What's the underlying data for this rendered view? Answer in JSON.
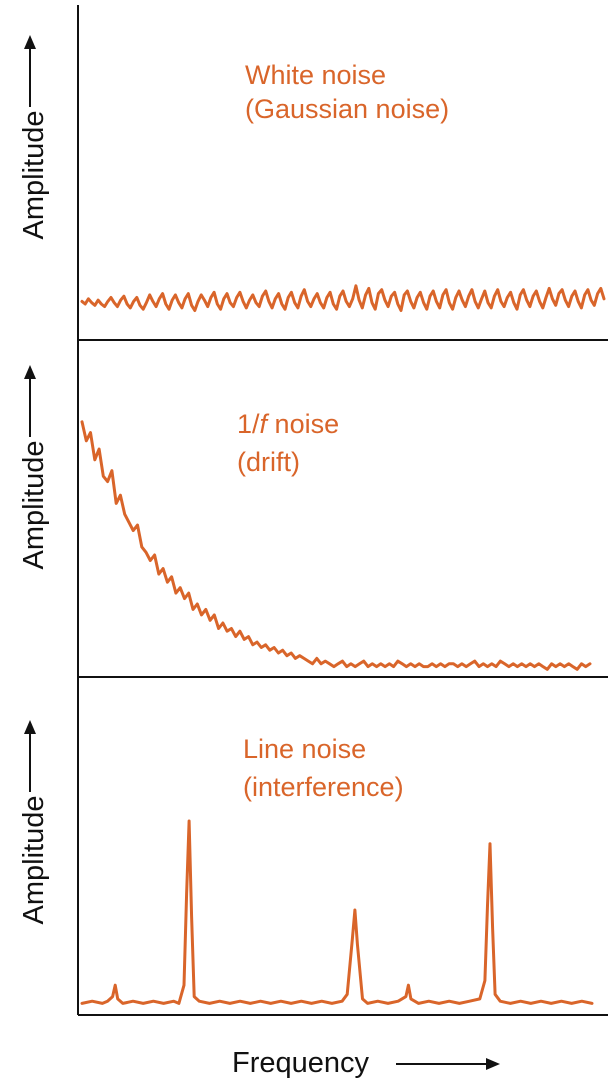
{
  "colors": {
    "trace": "#d9652a",
    "text": "#d9652a",
    "axis": "#111111"
  },
  "x_axis_label": "Frequency",
  "chart_data": [
    {
      "type": "line",
      "title_lines": [
        "White noise",
        "(Gaussian noise)"
      ],
      "ylabel": "Amplitude",
      "xlabel": "",
      "ylim": [
        0,
        1
      ],
      "xlim": [
        0,
        1
      ],
      "grid": false,
      "y": [
        0.22,
        0.2,
        0.24,
        0.21,
        0.19,
        0.23,
        0.2,
        0.18,
        0.22,
        0.25,
        0.21,
        0.18,
        0.23,
        0.26,
        0.2,
        0.17,
        0.22,
        0.25,
        0.19,
        0.16,
        0.21,
        0.27,
        0.22,
        0.18,
        0.24,
        0.28,
        0.2,
        0.16,
        0.23,
        0.27,
        0.21,
        0.17,
        0.24,
        0.28,
        0.19,
        0.15,
        0.22,
        0.27,
        0.23,
        0.18,
        0.25,
        0.29,
        0.2,
        0.16,
        0.24,
        0.28,
        0.21,
        0.18,
        0.25,
        0.29,
        0.22,
        0.17,
        0.23,
        0.27,
        0.21,
        0.18,
        0.26,
        0.3,
        0.22,
        0.17,
        0.24,
        0.28,
        0.2,
        0.16,
        0.25,
        0.29,
        0.21,
        0.17,
        0.26,
        0.31,
        0.22,
        0.18,
        0.24,
        0.28,
        0.21,
        0.17,
        0.25,
        0.29,
        0.2,
        0.16,
        0.26,
        0.3,
        0.22,
        0.18,
        0.24,
        0.34,
        0.23,
        0.17,
        0.27,
        0.32,
        0.21,
        0.16,
        0.28,
        0.31,
        0.23,
        0.18,
        0.26,
        0.29,
        0.2,
        0.15,
        0.27,
        0.3,
        0.22,
        0.17,
        0.25,
        0.29,
        0.21,
        0.16,
        0.26,
        0.3,
        0.22,
        0.17,
        0.27,
        0.31,
        0.21,
        0.16,
        0.25,
        0.3,
        0.23,
        0.18,
        0.26,
        0.31,
        0.22,
        0.17,
        0.24,
        0.3,
        0.21,
        0.17,
        0.26,
        0.31,
        0.22,
        0.18,
        0.25,
        0.29,
        0.21,
        0.16,
        0.27,
        0.31,
        0.23,
        0.18,
        0.26,
        0.3,
        0.22,
        0.17,
        0.25,
        0.32,
        0.24,
        0.19,
        0.28,
        0.31,
        0.23,
        0.18,
        0.26,
        0.3,
        0.22,
        0.17,
        0.27,
        0.31,
        0.23,
        0.19,
        0.28,
        0.32,
        0.24
      ]
    },
    {
      "type": "line",
      "title_lines": [
        "1/f noise",
        "(drift)"
      ],
      "title_italic_token": "f",
      "ylabel": "Amplitude",
      "xlabel": "",
      "ylim": [
        0,
        1
      ],
      "xlim": [
        0,
        1
      ],
      "grid": false,
      "y": [
        0.92,
        0.85,
        0.88,
        0.78,
        0.82,
        0.72,
        0.7,
        0.74,
        0.62,
        0.65,
        0.58,
        0.55,
        0.52,
        0.54,
        0.46,
        0.44,
        0.41,
        0.43,
        0.36,
        0.38,
        0.33,
        0.35,
        0.29,
        0.31,
        0.27,
        0.29,
        0.23,
        0.25,
        0.21,
        0.23,
        0.19,
        0.21,
        0.16,
        0.18,
        0.15,
        0.16,
        0.13,
        0.15,
        0.12,
        0.13,
        0.1,
        0.11,
        0.09,
        0.1,
        0.08,
        0.09,
        0.07,
        0.08,
        0.06,
        0.07,
        0.05,
        0.06,
        0.05,
        0.04,
        0.03,
        0.05,
        0.03,
        0.04,
        0.03,
        0.02,
        0.03,
        0.04,
        0.02,
        0.03,
        0.02,
        0.03,
        0.04,
        0.02,
        0.03,
        0.02,
        0.03,
        0.02,
        0.03,
        0.02,
        0.04,
        0.03,
        0.02,
        0.03,
        0.02,
        0.03,
        0.02,
        0.02,
        0.03,
        0.02,
        0.03,
        0.02,
        0.03,
        0.03,
        0.02,
        0.03,
        0.02,
        0.03,
        0.04,
        0.02,
        0.03,
        0.02,
        0.03,
        0.02,
        0.04,
        0.03,
        0.02,
        0.03,
        0.02,
        0.03,
        0.02,
        0.03,
        0.02,
        0.03,
        0.02,
        0.01,
        0.03,
        0.02,
        0.03,
        0.02,
        0.03,
        0.02,
        0.01,
        0.03,
        0.02,
        0.03
      ]
    },
    {
      "type": "line",
      "title_lines": [
        "Line noise",
        "(interference)"
      ],
      "ylabel": "Amplitude",
      "xlabel": "",
      "ylim": [
        0,
        1
      ],
      "xlim": [
        0,
        1
      ],
      "grid": false,
      "x": [
        0.0,
        0.02,
        0.04,
        0.05,
        0.06,
        0.065,
        0.07,
        0.08,
        0.1,
        0.12,
        0.14,
        0.16,
        0.18,
        0.19,
        0.2,
        0.205,
        0.21,
        0.215,
        0.22,
        0.23,
        0.25,
        0.27,
        0.29,
        0.31,
        0.33,
        0.35,
        0.37,
        0.39,
        0.41,
        0.43,
        0.45,
        0.47,
        0.49,
        0.51,
        0.52,
        0.53,
        0.535,
        0.54,
        0.55,
        0.56,
        0.58,
        0.6,
        0.62,
        0.635,
        0.64,
        0.645,
        0.66,
        0.68,
        0.7,
        0.72,
        0.74,
        0.76,
        0.78,
        0.79,
        0.795,
        0.8,
        0.805,
        0.81,
        0.82,
        0.84,
        0.86,
        0.88,
        0.9,
        0.92,
        0.94,
        0.96,
        0.98,
        1.0
      ],
      "y": [
        0.02,
        0.03,
        0.02,
        0.03,
        0.05,
        0.1,
        0.04,
        0.02,
        0.03,
        0.02,
        0.03,
        0.02,
        0.03,
        0.02,
        0.1,
        0.5,
        0.82,
        0.4,
        0.05,
        0.03,
        0.02,
        0.03,
        0.02,
        0.03,
        0.02,
        0.03,
        0.02,
        0.03,
        0.02,
        0.03,
        0.02,
        0.03,
        0.02,
        0.03,
        0.06,
        0.3,
        0.43,
        0.28,
        0.04,
        0.02,
        0.03,
        0.02,
        0.03,
        0.05,
        0.1,
        0.04,
        0.02,
        0.03,
        0.02,
        0.03,
        0.02,
        0.03,
        0.04,
        0.12,
        0.45,
        0.72,
        0.35,
        0.06,
        0.03,
        0.02,
        0.03,
        0.02,
        0.03,
        0.02,
        0.03,
        0.02,
        0.03,
        0.02
      ]
    }
  ]
}
